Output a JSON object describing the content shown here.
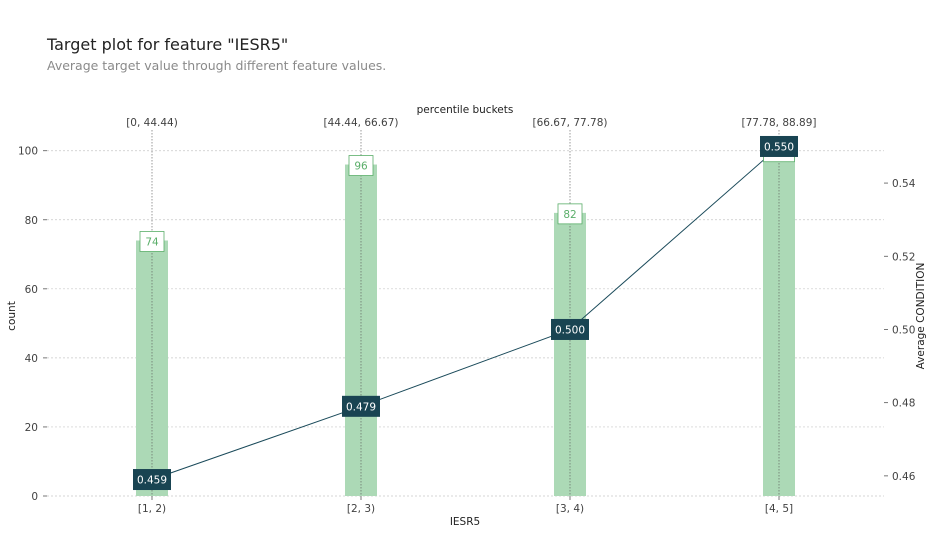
{
  "header": {
    "title": "Target plot for feature \"IESR5\"",
    "subtitle": "Average target value through different feature values."
  },
  "colors": {
    "bar": "#acd9b6",
    "bar_label_text": "#5aae69",
    "line": "#1a4a5a",
    "line_label_bg": "#194452"
  },
  "chart_data": {
    "type": "bar",
    "categories": [
      "[1, 2)",
      "[2, 3)",
      "[3, 4)",
      "[4, 5]"
    ],
    "top_categories": [
      "[0, 44.44)",
      "[44.44, 66.67)",
      "[66.67, 77.78)",
      "[77.78, 88.89]"
    ],
    "top_axis_label": "percentile buckets",
    "xlabel": "IESR5",
    "ylabel": "count",
    "y2label": "Average CONDITION",
    "ylim": [
      0,
      106
    ],
    "yticks": [
      0,
      20,
      40,
      60,
      80,
      100
    ],
    "y2lim": [
      0.4545,
      0.5545
    ],
    "y2ticks": [
      0.46,
      0.48,
      0.5,
      0.52,
      0.54
    ],
    "y2tick_labels": [
      "0.46",
      "0.48",
      "0.50",
      "0.52",
      "0.54"
    ],
    "series": [
      {
        "kind": "bar",
        "axis": "left",
        "values": [
          74,
          96,
          82,
          100
        ],
        "labels": [
          "74",
          "96",
          "82",
          "100"
        ]
      },
      {
        "kind": "line",
        "axis": "right",
        "values": [
          0.459,
          0.479,
          0.5,
          0.55
        ],
        "labels": [
          "0.459",
          "0.479",
          "0.500",
          "0.550"
        ]
      }
    ],
    "grid": true
  }
}
